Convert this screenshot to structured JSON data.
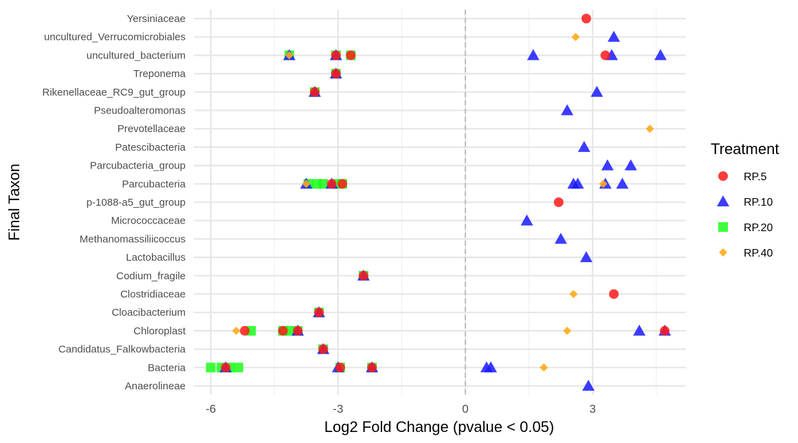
{
  "chart_data": {
    "type": "scatter",
    "xlabel": "Log2 Fold Change (pvalue < 0.05)",
    "ylabel": "Final Taxon",
    "xlim": [
      -6.4,
      5.2
    ],
    "xticks": [
      -6,
      -3,
      0,
      3
    ],
    "xtick_labels": [
      "-6",
      "-3",
      "0",
      "3"
    ],
    "zero_line": 0,
    "grid": true,
    "legend_position": "right",
    "categories": [
      "Anaerolineae",
      "Bacteria",
      "Candidatus_Falkowbacteria",
      "Chloroplast",
      "Cloacibacterium",
      "Clostridiaceae",
      "Codium_fragile",
      "Lactobacillus",
      "Methanomassiliicoccus",
      "Micrococcaceae",
      "p-1088-a5_gut_group",
      "Parcubacteria",
      "Parcubacteria_group",
      "Patescibacteria",
      "Prevotellaceae",
      "Pseudoalteromonas",
      "Rikenellaceae_RC9_gut_group",
      "Treponema",
      "uncultured_bacterium",
      "uncultured_Verrucomicrobiales",
      "Yersiniaceae"
    ],
    "series": [
      {
        "name": "RP.20",
        "color": "#1aff1a",
        "shape": "square",
        "points": [
          {
            "taxon": "Bacteria",
            "x": -6.0
          },
          {
            "taxon": "Bacteria",
            "x": -5.75
          },
          {
            "taxon": "Bacteria",
            "x": -5.55
          },
          {
            "taxon": "Bacteria",
            "x": -5.35
          },
          {
            "taxon": "Bacteria",
            "x": -2.95
          },
          {
            "taxon": "Bacteria",
            "x": -2.2
          },
          {
            "taxon": "Candidatus_Falkowbacteria",
            "x": -3.35
          },
          {
            "taxon": "Chloroplast",
            "x": -5.05
          },
          {
            "taxon": "Chloroplast",
            "x": -4.3
          },
          {
            "taxon": "Chloroplast",
            "x": -4.15
          },
          {
            "taxon": "Chloroplast",
            "x": -3.95
          },
          {
            "taxon": "Cloacibacterium",
            "x": -3.45
          },
          {
            "taxon": "Codium_fragile",
            "x": -2.4
          },
          {
            "taxon": "Parcubacteria",
            "x": -3.7
          },
          {
            "taxon": "Parcubacteria",
            "x": -3.5
          },
          {
            "taxon": "Parcubacteria",
            "x": -3.35
          },
          {
            "taxon": "Parcubacteria",
            "x": -3.05
          },
          {
            "taxon": "Parcubacteria",
            "x": -2.9
          },
          {
            "taxon": "Rikenellaceae_RC9_gut_group",
            "x": -3.55
          },
          {
            "taxon": "Treponema",
            "x": -3.05
          },
          {
            "taxon": "uncultured_bacterium",
            "x": -4.15
          },
          {
            "taxon": "uncultured_bacterium",
            "x": -3.05
          },
          {
            "taxon": "uncultured_bacterium",
            "x": -2.7
          }
        ]
      },
      {
        "name": "RP.10",
        "color": "#1a1aff",
        "shape": "triangle",
        "points": [
          {
            "taxon": "Anaerolineae",
            "x": 2.9
          },
          {
            "taxon": "Bacteria",
            "x": -5.65
          },
          {
            "taxon": "Bacteria",
            "x": -3.0
          },
          {
            "taxon": "Bacteria",
            "x": -2.2
          },
          {
            "taxon": "Bacteria",
            "x": 0.5
          },
          {
            "taxon": "Bacteria",
            "x": 0.6
          },
          {
            "taxon": "Candidatus_Falkowbacteria",
            "x": -3.35
          },
          {
            "taxon": "Chloroplast",
            "x": -3.95
          },
          {
            "taxon": "Chloroplast",
            "x": 4.1
          },
          {
            "taxon": "Chloroplast",
            "x": 4.7
          },
          {
            "taxon": "Cloacibacterium",
            "x": -3.45
          },
          {
            "taxon": "Codium_fragile",
            "x": -2.4
          },
          {
            "taxon": "Lactobacillus",
            "x": 2.85
          },
          {
            "taxon": "Methanomassiliicoccus",
            "x": 2.25
          },
          {
            "taxon": "Micrococcaceae",
            "x": 1.45
          },
          {
            "taxon": "Parcubacteria",
            "x": -3.75
          },
          {
            "taxon": "Parcubacteria",
            "x": -3.15
          },
          {
            "taxon": "Parcubacteria",
            "x": 2.55
          },
          {
            "taxon": "Parcubacteria",
            "x": 2.65
          },
          {
            "taxon": "Parcubacteria",
            "x": 3.3
          },
          {
            "taxon": "Parcubacteria",
            "x": 3.7
          },
          {
            "taxon": "Parcubacteria_group",
            "x": 3.35
          },
          {
            "taxon": "Parcubacteria_group",
            "x": 3.9
          },
          {
            "taxon": "Patescibacteria",
            "x": 2.8
          },
          {
            "taxon": "Pseudoalteromonas",
            "x": 2.4
          },
          {
            "taxon": "Rikenellaceae_RC9_gut_group",
            "x": -3.55
          },
          {
            "taxon": "Rikenellaceae_RC9_gut_group",
            "x": 3.1
          },
          {
            "taxon": "Treponema",
            "x": -3.05
          },
          {
            "taxon": "uncultured_bacterium",
            "x": -4.15
          },
          {
            "taxon": "uncultured_bacterium",
            "x": -3.05
          },
          {
            "taxon": "uncultured_bacterium",
            "x": 1.6
          },
          {
            "taxon": "uncultured_bacterium",
            "x": 3.45
          },
          {
            "taxon": "uncultured_bacterium",
            "x": 4.6
          },
          {
            "taxon": "uncultured_Verrucomicrobiales",
            "x": 3.5
          }
        ]
      },
      {
        "name": "RP.40",
        "color": "#ffab1a",
        "shape": "diamond",
        "points": [
          {
            "taxon": "Bacteria",
            "x": 1.85
          },
          {
            "taxon": "Chloroplast",
            "x": -5.4
          },
          {
            "taxon": "Chloroplast",
            "x": 2.4
          },
          {
            "taxon": "Clostridiaceae",
            "x": 2.55
          },
          {
            "taxon": "Parcubacteria",
            "x": -3.75
          },
          {
            "taxon": "Parcubacteria",
            "x": 3.25
          },
          {
            "taxon": "Prevotellaceae",
            "x": 4.35
          },
          {
            "taxon": "uncultured_bacterium",
            "x": -4.15
          },
          {
            "taxon": "uncultured_Verrucomicrobiales",
            "x": 2.6
          }
        ]
      },
      {
        "name": "RP.5",
        "color": "#ff1a1a",
        "shape": "circle",
        "points": [
          {
            "taxon": "Bacteria",
            "x": -5.65
          },
          {
            "taxon": "Bacteria",
            "x": -2.95
          },
          {
            "taxon": "Bacteria",
            "x": -2.2
          },
          {
            "taxon": "Candidatus_Falkowbacteria",
            "x": -3.35
          },
          {
            "taxon": "Chloroplast",
            "x": -5.2
          },
          {
            "taxon": "Chloroplast",
            "x": -4.3
          },
          {
            "taxon": "Chloroplast",
            "x": -3.95
          },
          {
            "taxon": "Chloroplast",
            "x": 4.7
          },
          {
            "taxon": "Cloacibacterium",
            "x": -3.45
          },
          {
            "taxon": "Clostridiaceae",
            "x": 3.5
          },
          {
            "taxon": "Codium_fragile",
            "x": -2.4
          },
          {
            "taxon": "p-1088-a5_gut_group",
            "x": 2.2
          },
          {
            "taxon": "Parcubacteria",
            "x": -3.15
          },
          {
            "taxon": "Parcubacteria",
            "x": -2.9
          },
          {
            "taxon": "Rikenellaceae_RC9_gut_group",
            "x": -3.55
          },
          {
            "taxon": "Treponema",
            "x": -3.05
          },
          {
            "taxon": "uncultured_bacterium",
            "x": -3.05
          },
          {
            "taxon": "uncultured_bacterium",
            "x": -2.7
          },
          {
            "taxon": "uncultured_bacterium",
            "x": 3.3
          },
          {
            "taxon": "Yersiniaceae",
            "x": 2.85
          }
        ]
      }
    ],
    "legend": {
      "title": "Treatment",
      "entries": [
        {
          "label": "RP.5",
          "shape": "circle",
          "color": "#ff1a1a"
        },
        {
          "label": "RP.10",
          "shape": "triangle",
          "color": "#1a1aff"
        },
        {
          "label": "RP.20",
          "shape": "square",
          "color": "#1aff1a"
        },
        {
          "label": "RP.40",
          "shape": "diamond",
          "color": "#ffab1a"
        }
      ]
    }
  }
}
